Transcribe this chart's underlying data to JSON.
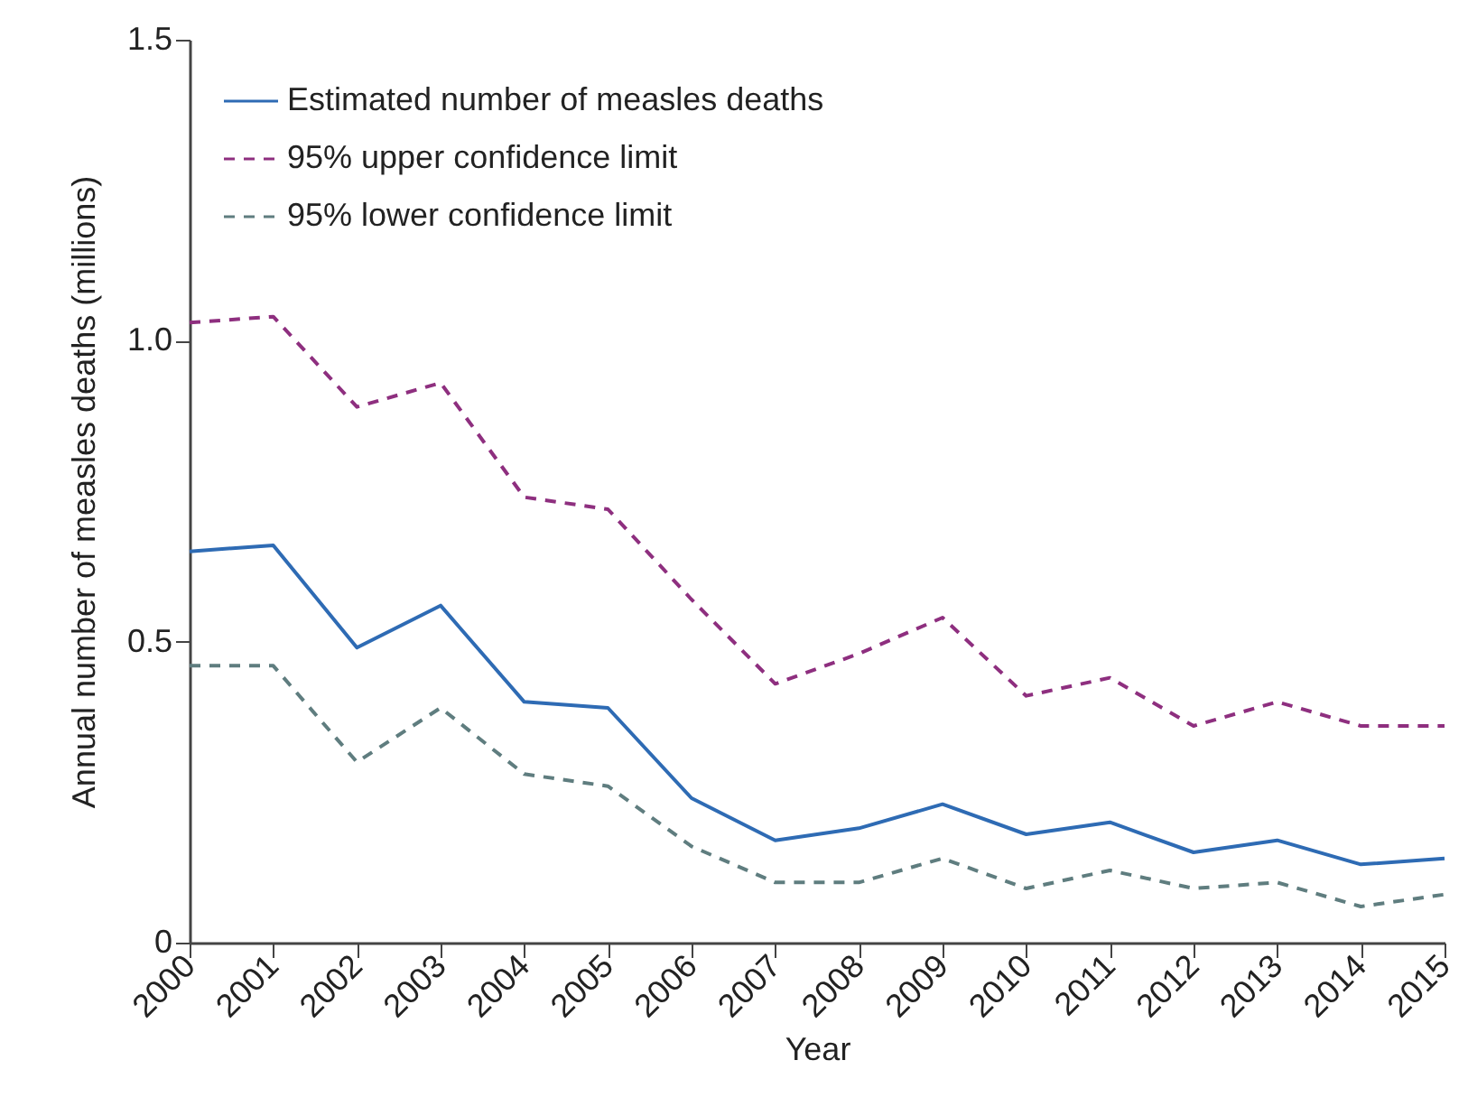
{
  "chart_data": {
    "type": "line",
    "xlabel": "Year",
    "ylabel": "Annual number of measles deaths (millions)",
    "categories": [
      "2000",
      "2001",
      "2002",
      "2003",
      "2004",
      "2005",
      "2006",
      "2007",
      "2008",
      "2009",
      "2010",
      "2011",
      "2012",
      "2013",
      "2014",
      "2015"
    ],
    "ylim": [
      0,
      1.5
    ],
    "yticks": [
      0,
      0.5,
      {
        "value": 1,
        "label": "1.0"
      },
      1.5
    ],
    "grid": false,
    "legend": "top left",
    "marker": "none",
    "series": [
      {
        "name": "Estimated number of measles deaths",
        "color": "#2e6bb4",
        "line_style": "solid",
        "values": [
          0.65,
          0.66,
          0.49,
          0.56,
          0.4,
          0.39,
          0.24,
          0.17,
          0.19,
          0.23,
          0.18,
          0.2,
          0.15,
          0.17,
          0.13,
          0.14
        ]
      },
      {
        "name": "95% upper confidence limit",
        "color": "#8e2f7f",
        "line_style": "dashed",
        "values": [
          1.03,
          1.04,
          0.89,
          0.93,
          0.74,
          0.72,
          0.57,
          0.43,
          0.48,
          0.54,
          0.41,
          0.44,
          0.36,
          0.4,
          0.36,
          0.36
        ]
      },
      {
        "name": "95% lower confidence limit",
        "color": "#5f7d7f",
        "line_style": "dashed",
        "values": [
          0.46,
          0.46,
          0.3,
          0.39,
          0.28,
          0.26,
          0.16,
          0.1,
          0.1,
          0.14,
          0.09,
          0.12,
          0.09,
          0.1,
          0.06,
          0.08
        ]
      }
    ]
  }
}
